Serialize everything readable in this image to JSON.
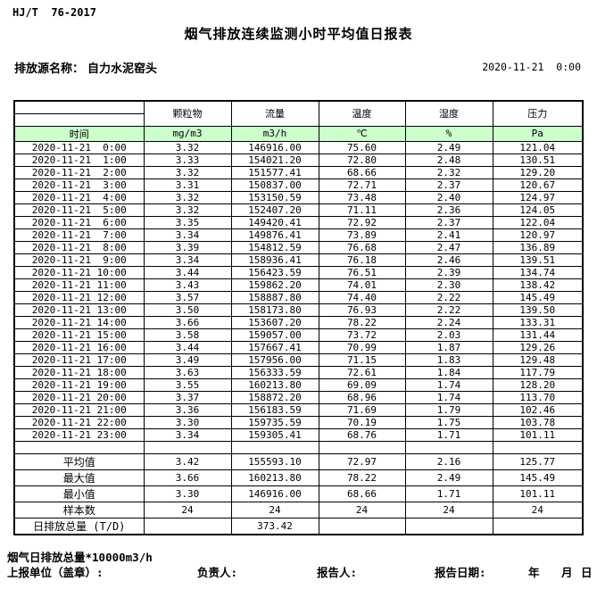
{
  "header": {
    "standard": "HJ/T  76-2017",
    "title": "烟气排放连续监测小时平均值日报表",
    "source_label": "排放源名称：",
    "source_name": "自力水泥窑头",
    "datetime": "2020-11-21  0:00"
  },
  "table": {
    "time_header": "时间",
    "columns": [
      {
        "name": "颗粒物",
        "unit": "mg/m3"
      },
      {
        "name": "流量",
        "unit": "m3/h"
      },
      {
        "name": "温度",
        "unit": "℃"
      },
      {
        "name": "湿度",
        "unit": "%"
      },
      {
        "name": "压力",
        "unit": "Pa"
      }
    ],
    "rows": [
      {
        "time": "2020-11-21  0:00",
        "values": [
          "3.32",
          "146916.00",
          "75.60",
          "2.49",
          "121.04"
        ]
      },
      {
        "time": "2020-11-21  1:00",
        "values": [
          "3.33",
          "154021.20",
          "72.80",
          "2.48",
          "130.51"
        ]
      },
      {
        "time": "2020-11-21  2:00",
        "values": [
          "3.32",
          "151577.41",
          "68.66",
          "2.32",
          "129.20"
        ]
      },
      {
        "time": "2020-11-21  3:00",
        "values": [
          "3.31",
          "150837.00",
          "72.71",
          "2.37",
          "120.67"
        ]
      },
      {
        "time": "2020-11-21  4:00",
        "values": [
          "3.32",
          "153150.59",
          "73.48",
          "2.40",
          "124.97"
        ]
      },
      {
        "time": "2020-11-21  5:00",
        "values": [
          "3.32",
          "152407.20",
          "71.11",
          "2.36",
          "124.05"
        ]
      },
      {
        "time": "2020-11-21  6:00",
        "values": [
          "3.35",
          "149420.41",
          "72.92",
          "2.37",
          "122.04"
        ]
      },
      {
        "time": "2020-11-21  7:00",
        "values": [
          "3.34",
          "149876.41",
          "73.89",
          "2.41",
          "120.97"
        ]
      },
      {
        "time": "2020-11-21  8:00",
        "values": [
          "3.39",
          "154812.59",
          "76.68",
          "2.47",
          "136.89"
        ]
      },
      {
        "time": "2020-11-21  9:00",
        "values": [
          "3.34",
          "158936.41",
          "76.18",
          "2.46",
          "139.51"
        ]
      },
      {
        "time": "2020-11-21 10:00",
        "values": [
          "3.44",
          "156423.59",
          "76.51",
          "2.39",
          "134.74"
        ]
      },
      {
        "time": "2020-11-21 11:00",
        "values": [
          "3.43",
          "159862.20",
          "74.01",
          "2.30",
          "138.42"
        ]
      },
      {
        "time": "2020-11-21 12:00",
        "values": [
          "3.57",
          "158887.80",
          "74.40",
          "2.22",
          "145.49"
        ]
      },
      {
        "time": "2020-11-21 13:00",
        "values": [
          "3.50",
          "158173.80",
          "76.93",
          "2.22",
          "139.50"
        ]
      },
      {
        "time": "2020-11-21 14:00",
        "values": [
          "3.66",
          "153607.20",
          "78.22",
          "2.24",
          "133.31"
        ]
      },
      {
        "time": "2020-11-21 15:00",
        "values": [
          "3.58",
          "159057.00",
          "73.72",
          "2.03",
          "131.44"
        ]
      },
      {
        "time": "2020-11-21 16:00",
        "values": [
          "3.44",
          "157667.41",
          "70.99",
          "1.87",
          "129.26"
        ]
      },
      {
        "time": "2020-11-21 17:00",
        "values": [
          "3.49",
          "157956.00",
          "71.15",
          "1.83",
          "129.48"
        ]
      },
      {
        "time": "2020-11-21 18:00",
        "values": [
          "3.63",
          "156333.59",
          "72.61",
          "1.84",
          "117.79"
        ]
      },
      {
        "time": "2020-11-21 19:00",
        "values": [
          "3.55",
          "160213.80",
          "69.09",
          "1.74",
          "128.20"
        ]
      },
      {
        "time": "2020-11-21 20:00",
        "values": [
          "3.37",
          "158872.20",
          "68.96",
          "1.74",
          "113.70"
        ]
      },
      {
        "time": "2020-11-21 21:00",
        "values": [
          "3.36",
          "156183.59",
          "71.69",
          "1.79",
          "102.46"
        ]
      },
      {
        "time": "2020-11-21 22:00",
        "values": [
          "3.30",
          "159735.59",
          "70.19",
          "1.75",
          "103.78"
        ]
      },
      {
        "time": "2020-11-21 23:00",
        "values": [
          "3.34",
          "159305.41",
          "68.76",
          "1.71",
          "101.11"
        ]
      }
    ],
    "summary": [
      {
        "label": "平均值",
        "values": [
          "3.42",
          "155593.10",
          "72.97",
          "2.16",
          "125.77"
        ]
      },
      {
        "label": "最大值",
        "values": [
          "3.66",
          "160213.80",
          "78.22",
          "2.49",
          "145.49"
        ]
      },
      {
        "label": "最小值",
        "values": [
          "3.30",
          "146916.00",
          "68.66",
          "1.71",
          "101.11"
        ]
      },
      {
        "label": "样本数",
        "values": [
          "24",
          "24",
          "24",
          "24",
          "24"
        ]
      },
      {
        "label": "日排放总量 (T/D)",
        "values": [
          "",
          "373.42",
          "",
          "",
          ""
        ]
      }
    ]
  },
  "footer": {
    "note": "烟气日排放总量*10000m3/h",
    "report_unit_label": "上报单位（盖章）:",
    "responsible_label": "负责人:",
    "reporter_label": "报告人:",
    "report_date_label": "报告日期:",
    "year_label": "年",
    "month_label": "月",
    "day_label": "日"
  },
  "colors": {
    "header_green": "#ccffcc",
    "border": "#000000",
    "text": "#000000",
    "page_background": "#ffffff"
  }
}
